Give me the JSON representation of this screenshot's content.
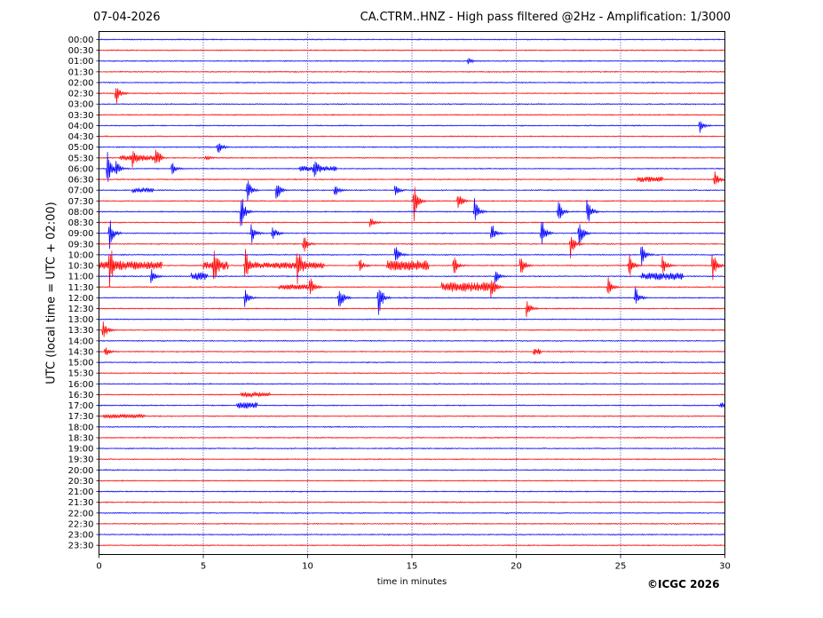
{
  "header": {
    "date": "07-04-2026",
    "title": "CA.CTRM..HNZ - High pass filtered @2Hz - Amplification: 1/3000"
  },
  "footer": {
    "copyright": "©ICGC 2026"
  },
  "colors": {
    "trace_even": "#0000ff",
    "trace_odd": "#ff0000",
    "gridline": "#000080"
  },
  "chart_data": {
    "type": "line",
    "subtype": "helicorder",
    "title": "CA.CTRM..HNZ - High pass filtered @2Hz - Amplification: 1/3000",
    "xlabel": "time in minutes",
    "ylabel": "UTC (local time = UTC + 02:00)",
    "xlim": [
      0,
      30
    ],
    "x_ticks": [
      0,
      5,
      10,
      15,
      20,
      25,
      30
    ],
    "grid": "vertical dotted at every 5 minutes",
    "row_labels": [
      "00:00",
      "00:30",
      "01:00",
      "01:30",
      "02:00",
      "02:30",
      "03:00",
      "03:30",
      "04:00",
      "04:30",
      "05:00",
      "05:30",
      "06:00",
      "06:30",
      "07:00",
      "07:30",
      "08:00",
      "08:30",
      "09:00",
      "09:30",
      "10:00",
      "10:30",
      "11:00",
      "11:30",
      "12:00",
      "12:30",
      "13:00",
      "13:30",
      "14:00",
      "14:30",
      "15:00",
      "15:30",
      "16:00",
      "16:30",
      "17:00",
      "17:30",
      "18:00",
      "18:30",
      "19:00",
      "19:30",
      "20:00",
      "20:30",
      "21:00",
      "21:30",
      "22:00",
      "22:30",
      "23:00",
      "23:30"
    ],
    "events": [
      {
        "row": 2,
        "minute": 17.7,
        "amp": 0.3
      },
      {
        "row": 5,
        "minute": 0.8,
        "amp": 1.3
      },
      {
        "row": 8,
        "minute": 28.8,
        "amp": 0.7
      },
      {
        "row": 10,
        "minute": 5.7,
        "amp": 0.8
      },
      {
        "row": 11,
        "minute": 1.6,
        "amp": 0.9
      },
      {
        "row": 11,
        "minute": 2.7,
        "amp": 0.9
      },
      {
        "row": 11,
        "minute": 5.1,
        "amp": 0.3
      },
      {
        "row": 12,
        "minute": 0.4,
        "amp": 1.8
      },
      {
        "row": 12,
        "minute": 0.8,
        "amp": 1.0
      },
      {
        "row": 12,
        "minute": 3.5,
        "amp": 0.7
      },
      {
        "row": 12,
        "minute": 10.3,
        "amp": 0.8
      },
      {
        "row": 13,
        "minute": 29.5,
        "amp": 1.0
      },
      {
        "row": 14,
        "minute": 7.1,
        "amp": 1.4
      },
      {
        "row": 14,
        "minute": 8.5,
        "amp": 1.2
      },
      {
        "row": 14,
        "minute": 11.3,
        "amp": 0.8
      },
      {
        "row": 14,
        "minute": 14.2,
        "amp": 0.6
      },
      {
        "row": 15,
        "minute": 15.1,
        "amp": 1.9
      },
      {
        "row": 15,
        "minute": 17.2,
        "amp": 1.2
      },
      {
        "row": 16,
        "minute": 6.8,
        "amp": 2.1
      },
      {
        "row": 16,
        "minute": 18.0,
        "amp": 1.5
      },
      {
        "row": 16,
        "minute": 22.0,
        "amp": 1.3
      },
      {
        "row": 16,
        "minute": 23.4,
        "amp": 1.6
      },
      {
        "row": 17,
        "minute": 13.0,
        "amp": 0.6
      },
      {
        "row": 18,
        "minute": 0.5,
        "amp": 1.6
      },
      {
        "row": 18,
        "minute": 7.3,
        "amp": 1.1
      },
      {
        "row": 18,
        "minute": 8.3,
        "amp": 1.0
      },
      {
        "row": 18,
        "minute": 18.8,
        "amp": 1.2
      },
      {
        "row": 18,
        "minute": 21.2,
        "amp": 1.7
      },
      {
        "row": 18,
        "minute": 23.0,
        "amp": 1.9
      },
      {
        "row": 19,
        "minute": 9.8,
        "amp": 1.0
      },
      {
        "row": 19,
        "minute": 22.6,
        "amp": 1.4
      },
      {
        "row": 20,
        "minute": 14.2,
        "amp": 1.1
      },
      {
        "row": 20,
        "minute": 26.0,
        "amp": 1.3
      },
      {
        "row": 21,
        "minute": 0.5,
        "amp": 2.2
      },
      {
        "row": 21,
        "minute": 5.5,
        "amp": 1.5
      },
      {
        "row": 21,
        "minute": 7.0,
        "amp": 1.5
      },
      {
        "row": 21,
        "minute": 9.5,
        "amp": 2.0
      },
      {
        "row": 21,
        "minute": 12.5,
        "amp": 0.8
      },
      {
        "row": 21,
        "minute": 17.0,
        "amp": 1.2
      },
      {
        "row": 21,
        "minute": 20.2,
        "amp": 1.4
      },
      {
        "row": 21,
        "minute": 25.4,
        "amp": 1.5
      },
      {
        "row": 21,
        "minute": 27.0,
        "amp": 1.3
      },
      {
        "row": 21,
        "minute": 29.4,
        "amp": 1.7
      },
      {
        "row": 22,
        "minute": 2.5,
        "amp": 0.9
      },
      {
        "row": 22,
        "minute": 19.0,
        "amp": 0.8
      },
      {
        "row": 23,
        "minute": 10.1,
        "amp": 1.5
      },
      {
        "row": 23,
        "minute": 18.8,
        "amp": 1.5
      },
      {
        "row": 23,
        "minute": 24.4,
        "amp": 1.0
      },
      {
        "row": 24,
        "minute": 7.0,
        "amp": 1.1
      },
      {
        "row": 24,
        "minute": 11.5,
        "amp": 1.6
      },
      {
        "row": 24,
        "minute": 13.4,
        "amp": 2.1
      },
      {
        "row": 24,
        "minute": 25.7,
        "amp": 1.2
      },
      {
        "row": 25,
        "minute": 20.5,
        "amp": 1.0
      },
      {
        "row": 27,
        "minute": 0.2,
        "amp": 1.2
      },
      {
        "row": 29,
        "minute": 0.3,
        "amp": 0.5
      },
      {
        "row": 34,
        "minute": 29.8,
        "amp": 0.4
      }
    ],
    "noise_bursts": [
      {
        "row": 11,
        "start": 1.0,
        "end": 3.0,
        "amp": 0.2
      },
      {
        "row": 12,
        "start": 9.6,
        "end": 11.4,
        "amp": 0.2
      },
      {
        "row": 13,
        "start": 25.8,
        "end": 27.0,
        "amp": 0.2
      },
      {
        "row": 14,
        "start": 1.6,
        "end": 2.6,
        "amp": 0.2
      },
      {
        "row": 21,
        "start": 0.0,
        "end": 3.0,
        "amp": 0.35
      },
      {
        "row": 21,
        "start": 5.0,
        "end": 6.2,
        "amp": 0.3
      },
      {
        "row": 21,
        "start": 7.0,
        "end": 10.8,
        "amp": 0.25
      },
      {
        "row": 21,
        "start": 13.8,
        "end": 15.8,
        "amp": 0.45
      },
      {
        "row": 22,
        "start": 4.4,
        "end": 5.2,
        "amp": 0.3
      },
      {
        "row": 22,
        "start": 26.0,
        "end": 28.0,
        "amp": 0.3
      },
      {
        "row": 23,
        "start": 16.4,
        "end": 18.8,
        "amp": 0.4
      },
      {
        "row": 23,
        "start": 8.6,
        "end": 10.0,
        "amp": 0.2
      },
      {
        "row": 29,
        "start": 20.8,
        "end": 21.2,
        "amp": 0.25
      },
      {
        "row": 33,
        "start": 6.8,
        "end": 8.2,
        "amp": 0.2
      },
      {
        "row": 34,
        "start": 6.6,
        "end": 7.6,
        "amp": 0.25
      },
      {
        "row": 35,
        "start": 0.2,
        "end": 2.2,
        "amp": 0.15
      }
    ]
  }
}
